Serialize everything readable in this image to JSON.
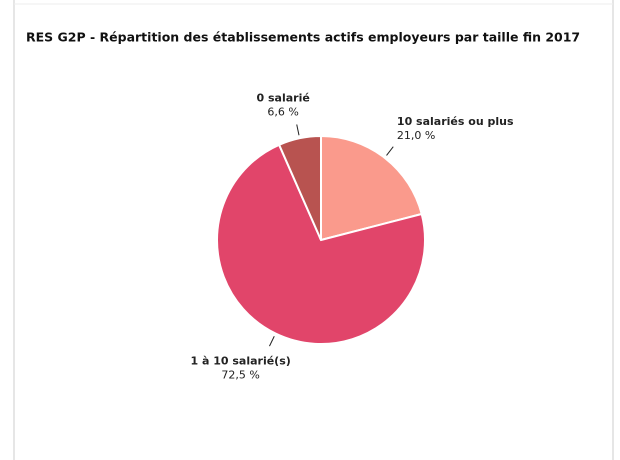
{
  "chart_data": {
    "type": "pie",
    "title": "RES G2P - Répartition des établissements actifs employeurs par taille fin 2017",
    "categories": [
      "10 salariés ou plus",
      "1 à 10 salarié(s)",
      "0 salarié"
    ],
    "values": [
      21.0,
      72.5,
      6.6
    ],
    "value_labels": [
      "21,0 %",
      "72,5 %",
      "6,6 %"
    ],
    "colors": [
      "#fa9a8c",
      "#e1456a",
      "#b85350"
    ]
  }
}
